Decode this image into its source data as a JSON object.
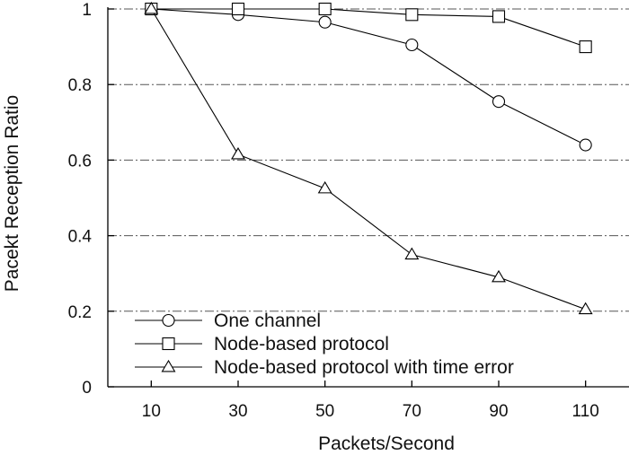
{
  "chart_data": {
    "type": "line",
    "title": "",
    "xlabel": "Packets/Second",
    "ylabel": "Pacekt Reception Ratio",
    "x": [
      10,
      30,
      50,
      70,
      90,
      110
    ],
    "x_tick_labels": [
      "10",
      "30",
      "50",
      "70",
      "90",
      "110"
    ],
    "y_tick_labels": [
      "0",
      "0.2",
      "0.4",
      "0.6",
      "0.8",
      "1"
    ],
    "y_ticks": [
      0,
      0.2,
      0.4,
      0.6,
      0.8,
      1
    ],
    "xlim": [
      0,
      120
    ],
    "ylim": [
      0,
      1
    ],
    "grid": "horizontal dash-dot",
    "legend_position": "bottom-left",
    "series": [
      {
        "name": "One channel",
        "marker": "circle",
        "values": [
          1.0,
          0.985,
          0.965,
          0.905,
          0.755,
          0.64
        ]
      },
      {
        "name": "Node-based protocol",
        "marker": "square",
        "values": [
          1.0,
          1.0,
          1.0,
          0.985,
          0.98,
          0.9
        ]
      },
      {
        "name": "Node-based protocol with time error",
        "marker": "triangle",
        "values": [
          1.0,
          0.615,
          0.525,
          0.35,
          0.29,
          0.205
        ]
      }
    ]
  }
}
